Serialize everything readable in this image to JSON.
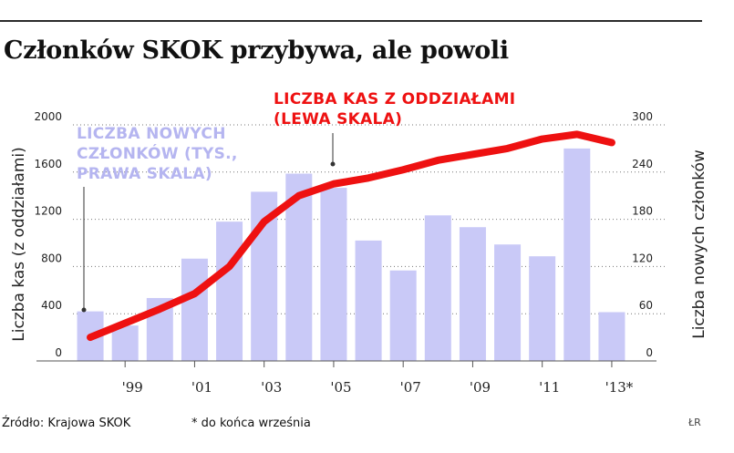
{
  "title": "Członków SKOK przybywa, ale powoli",
  "chart_data": {
    "type": "bar+line",
    "x": [
      "1998",
      "1999",
      "2000",
      "2001",
      "2002",
      "2003",
      "2004",
      "2005",
      "2006",
      "2007",
      "2008",
      "2009",
      "2010",
      "2011",
      "2012",
      "2013"
    ],
    "x_tick_labels": [
      "",
      "'99",
      "",
      "'01",
      "",
      "'03",
      "",
      "'05",
      "",
      "'07",
      "",
      "'09",
      "",
      "'11",
      "",
      "'13*"
    ],
    "series": [
      {
        "name": "LICZBA NOWYCH CZŁONKÓW (TYS., PRAWA SKALA)",
        "type": "bar",
        "axis": "right",
        "color": "#c9c9f7",
        "values": [
          63,
          45,
          80,
          130,
          177,
          215,
          238,
          220,
          153,
          115,
          185,
          170,
          148,
          133,
          270,
          62
        ]
      },
      {
        "name": "LICZBA KAS Z ODDZIAŁAMI (LEWA SKALA)",
        "type": "line",
        "axis": "left",
        "color": "#ee1111",
        "values": [
          200,
          320,
          440,
          570,
          800,
          1180,
          1400,
          1500,
          1550,
          1620,
          1700,
          1750,
          1800,
          1880,
          1920,
          1850
        ]
      }
    ],
    "left_axis": {
      "label": "Liczba kas (z oddziałami)",
      "min": 0,
      "max": 2000,
      "ticks": [
        "0",
        "400",
        "800",
        "1200",
        "1600",
        "2000"
      ],
      "tick_values": [
        0,
        400,
        800,
        1200,
        1600,
        2000
      ]
    },
    "right_axis": {
      "label": "Liczba nowych członków",
      "min": 0,
      "max": 300,
      "ticks": [
        "0",
        "60",
        "120",
        "180",
        "240",
        "300"
      ],
      "tick_values": [
        0,
        60,
        120,
        180,
        240,
        300
      ]
    },
    "grid": "dotted horizontal",
    "annotations": {
      "bars_label_lines": [
        "LICZBA NOWYCH",
        "CZŁONKÓW (TYS.,",
        "PRAWA SKALA)"
      ],
      "line_label_lines": [
        "LICZBA KAS Z ODDZIAŁAMI",
        "(LEWA SKALA)"
      ]
    }
  },
  "footer": {
    "source": "Źródło: Krajowa SKOK",
    "note": "* do końca września",
    "credit": "ŁR"
  }
}
